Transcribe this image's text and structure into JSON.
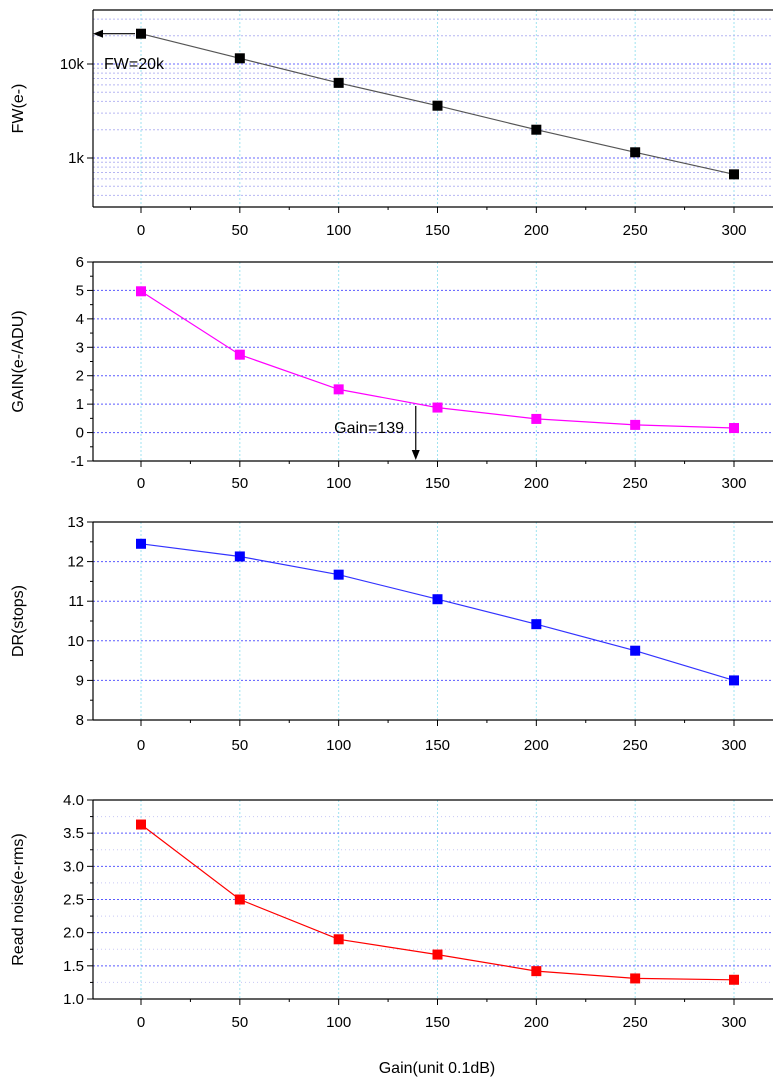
{
  "xlabel": "Gain(unit 0.1dB)",
  "x_ticks": [
    "0",
    "50",
    "100",
    "150",
    "200",
    "250",
    "300"
  ],
  "chart_data": [
    {
      "type": "line",
      "ylabel": "FW(e-)",
      "yscale": "log",
      "ylim": [
        300,
        40000
      ],
      "y_tick_labels": [
        "1k",
        "10k"
      ],
      "color": "#000000",
      "line_color": "#555555",
      "annotation": "FW=20k",
      "series": [
        {
          "x": [
            0,
            50,
            100,
            150,
            200,
            250,
            300
          ],
          "values": [
            21000,
            11500,
            6300,
            3600,
            2000,
            1150,
            670
          ]
        }
      ]
    },
    {
      "type": "line",
      "ylabel": "GAIN(e-/ADU)",
      "ylim": [
        -1,
        6
      ],
      "y_tick_labels": [
        "-1",
        "0",
        "1",
        "2",
        "3",
        "4",
        "5",
        "6"
      ],
      "color": "#ff00ff",
      "line_color": "#ff00ff",
      "annotation": "Gain=139",
      "series": [
        {
          "x": [
            0,
            50,
            100,
            150,
            200,
            250,
            300
          ],
          "values": [
            4.97,
            2.74,
            1.52,
            0.88,
            0.48,
            0.27,
            0.16
          ]
        }
      ]
    },
    {
      "type": "line",
      "ylabel": "DR(stops)",
      "ylim": [
        8,
        13
      ],
      "y_tick_labels": [
        "8",
        "9",
        "10",
        "11",
        "12",
        "13"
      ],
      "color": "#0000ff",
      "line_color": "#3333ff",
      "series": [
        {
          "x": [
            0,
            50,
            100,
            150,
            200,
            250,
            300
          ],
          "values": [
            12.45,
            12.13,
            11.67,
            11.05,
            10.42,
            9.75,
            9.0
          ]
        }
      ]
    },
    {
      "type": "line",
      "ylabel": "Read noise(e-rms)",
      "ylim": [
        1.0,
        4.0
      ],
      "y_tick_labels": [
        "1.0",
        "1.5",
        "2.0",
        "2.5",
        "3.0",
        "3.5",
        "4.0"
      ],
      "color": "#ff0000",
      "line_color": "#ff0000",
      "series": [
        {
          "x": [
            0,
            50,
            100,
            150,
            200,
            250,
            300
          ],
          "values": [
            3.63,
            2.5,
            1.9,
            1.67,
            1.42,
            1.31,
            1.29
          ]
        }
      ]
    }
  ]
}
